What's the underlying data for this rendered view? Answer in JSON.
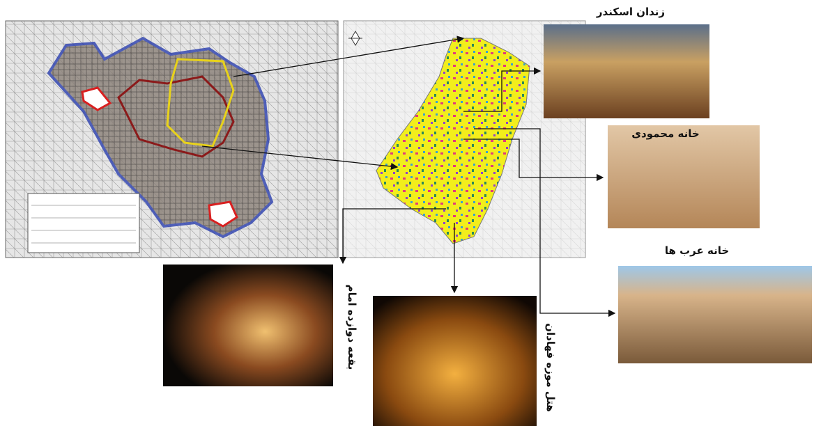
{
  "photos": [
    {
      "label": "زندان اسکندر"
    },
    {
      "label": "خانه محمودی"
    },
    {
      "label": "خانه عرب ها"
    },
    {
      "label": "بقعه دوازده امام"
    },
    {
      "label": "هتل موزه فهادان"
    }
  ]
}
